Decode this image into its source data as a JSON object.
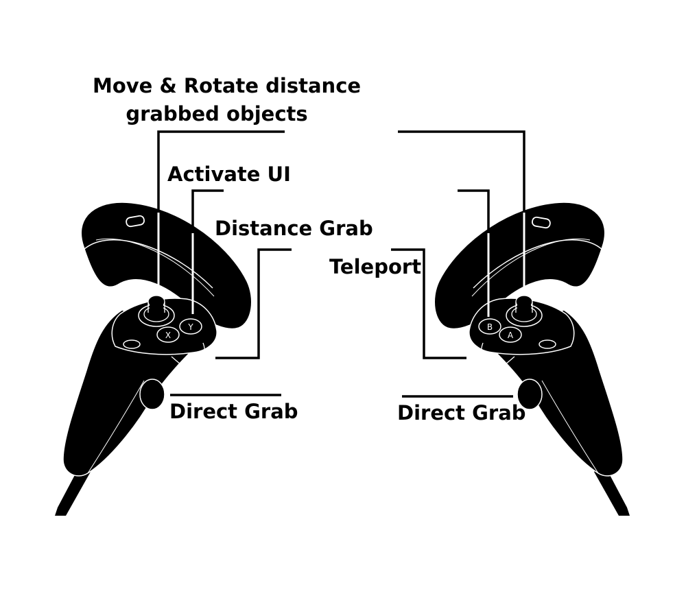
{
  "labels": {
    "move_rotate_line1": "Move & Rotate distance",
    "move_rotate_line2": "grabbed objects",
    "activate_ui": "Activate UI",
    "distance_grab": "Distance Grab",
    "teleport": "Teleport",
    "direct_grab_left": "Direct Grab",
    "direct_grab_right": "Direct Grab"
  },
  "colors": {
    "ink": "#000000",
    "paper": "#ffffff",
    "controller_fill": "#000000",
    "controller_outline": "#ffffff"
  }
}
